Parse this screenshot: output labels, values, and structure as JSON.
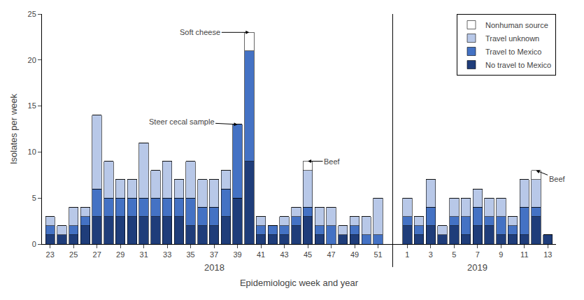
{
  "chart_data": {
    "type": "bar",
    "stacked": true,
    "xlabel": "Epidemiologic week and year",
    "ylabel": "Isolates per week",
    "categories": [
      "23",
      null,
      "25",
      null,
      "27",
      null,
      "29",
      null,
      "31",
      null,
      "33",
      null,
      "35",
      null,
      "37",
      null,
      "39",
      null,
      "41",
      null,
      "43",
      null,
      "45",
      null,
      "47",
      null,
      "49",
      null,
      "51",
      "1",
      null,
      "3",
      null,
      "5",
      null,
      "7",
      null,
      "9",
      null,
      "11",
      null,
      "13"
    ],
    "series": [
      {
        "name": "No travel to Mexico",
        "color": "#1f3d7a",
        "values": [
          1,
          1,
          1,
          2,
          3,
          3,
          3,
          3,
          3,
          3,
          3,
          3,
          2,
          2,
          2,
          3,
          5,
          9,
          1,
          1,
          1,
          2,
          3,
          1,
          0,
          1,
          1,
          0,
          0,
          2,
          1,
          2,
          1,
          2,
          1,
          2,
          2,
          1,
          1,
          1,
          3,
          1
        ]
      },
      {
        "name": "Travel to Mexico",
        "color": "#4472c4",
        "values": [
          1,
          0,
          1,
          1,
          3,
          2,
          2,
          2,
          2,
          2,
          2,
          2,
          3,
          2,
          2,
          3,
          8,
          12,
          1,
          1,
          1,
          1,
          1,
          1,
          2,
          0,
          1,
          1,
          1,
          1,
          1,
          2,
          0,
          1,
          2,
          2,
          1,
          2,
          1,
          3,
          1,
          0
        ]
      },
      {
        "name": "Travel unknown",
        "color": "#b8c8e8",
        "values": [
          1,
          1,
          2,
          1,
          8,
          4,
          2,
          2,
          6,
          3,
          4,
          2,
          4,
          3,
          3,
          2,
          0,
          0,
          1,
          0,
          1,
          1,
          4,
          2,
          2,
          1,
          1,
          2,
          4,
          2,
          1,
          3,
          1,
          2,
          2,
          2,
          2,
          2,
          1,
          3,
          3,
          0
        ]
      },
      {
        "name": "Nonhuman source",
        "color": "#ffffff",
        "values": [
          0,
          0,
          0,
          0,
          0,
          0,
          0,
          0,
          0,
          0,
          0,
          0,
          0,
          0,
          0,
          0,
          0,
          2,
          0,
          0,
          0,
          0,
          1,
          0,
          0,
          0,
          0,
          0,
          0,
          0,
          0,
          0,
          0,
          0,
          0,
          0,
          0,
          0,
          0,
          0,
          1,
          0
        ]
      }
    ],
    "annotations": [
      {
        "text": "2018",
        "x": [
          0,
          28
        ]
      },
      {
        "text": "2019",
        "x": [
          29,
          41
        ]
      },
      {
        "text": "Soft cheese",
        "x": 17
      },
      {
        "text": "Steer cecal sample",
        "x": 16
      },
      {
        "text": "Beef",
        "x": 22
      },
      {
        "text": "Beef",
        "x": 40
      }
    ],
    "ylim": [
      0,
      25
    ],
    "yticks": [
      0,
      5,
      10,
      15,
      20,
      25
    ],
    "grid": false,
    "legend": "upper right"
  }
}
